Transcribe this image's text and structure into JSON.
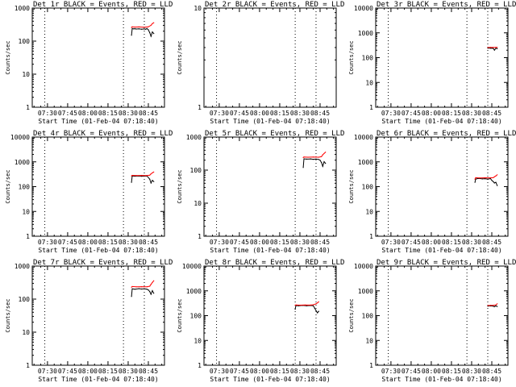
{
  "chart_data": {
    "type": "line",
    "layout": "3x3 grid",
    "y_axis": {
      "label": "Counts/sec",
      "scale": "log"
    },
    "x_axis": {
      "label": "Start Time (01-Feb-04 07:18:40)",
      "tick_labels": [
        "07:30",
        "07:45",
        "08:00",
        "08:15",
        "08:30",
        "08:45"
      ],
      "tick_minutes": [
        30,
        45,
        60,
        75,
        90,
        105
      ],
      "range_minutes": [
        18.67,
        117
      ],
      "dotted_lines_minutes": [
        28,
        86.5,
        102
      ]
    },
    "legend": "BLACK = Events, RED = LLD",
    "panels": [
      {
        "title": "Det 1r BLACK = Events, RED = LLD",
        "ylim": [
          1,
          1000
        ],
        "ytick_labels": [
          "1",
          "10",
          "100",
          "1000"
        ],
        "ytick_values": [
          1,
          10,
          100,
          1000
        ],
        "series": [
          {
            "name": "Events",
            "color": "#000000",
            "x": [
              92.5,
              93,
              94,
              95,
              96,
              98,
              100,
              102,
              103,
              104,
              105,
              106,
              107,
              108,
              109
            ],
            "y": [
              150,
              240,
              235,
              238,
              232,
              236,
              230,
              234,
              228,
              240,
              220,
              180,
              140,
              190,
              170
            ]
          },
          {
            "name": "LLD",
            "color": "#ff0000",
            "x": [
              92.5,
              93,
              95,
              98,
              101,
              103,
              105,
              107,
              108,
              109
            ],
            "y": [
              260,
              270,
              265,
              268,
              262,
              266,
              270,
              300,
              340,
              360
            ]
          }
        ]
      },
      {
        "title": "Det 2r BLACK = Events, RED = LLD",
        "ylim": [
          1,
          10
        ],
        "ytick_labels": [
          "1",
          "10"
        ],
        "ytick_values": [
          1,
          10
        ],
        "series": []
      },
      {
        "title": "Det 3r BLACK = Events, RED = LLD",
        "ylim": [
          1,
          10000
        ],
        "ytick_labels": [
          "1",
          "10",
          "100",
          "1000",
          "10000"
        ],
        "ytick_values": [
          1,
          10,
          100,
          1000,
          10000
        ],
        "series": [
          {
            "name": "Events",
            "color": "#000000",
            "x": [
              102,
              103,
              104,
              105,
              106,
              107,
              108,
              109
            ],
            "y": [
              240,
              245,
              238,
              242,
              236,
              200,
              240,
              230
            ]
          },
          {
            "name": "LLD",
            "color": "#ff0000",
            "x": [
              102,
              104,
              106,
              108,
              109
            ],
            "y": [
              255,
              258,
              256,
              260,
              258
            ]
          }
        ]
      },
      {
        "title": "Det 4r BLACK = Events, RED = LLD",
        "ylim": [
          1,
          10000
        ],
        "ytick_labels": [
          "1",
          "10",
          "100",
          "1000",
          "10000"
        ],
        "ytick_values": [
          1,
          10,
          100,
          1000,
          10000
        ],
        "series": [
          {
            "name": "Events",
            "color": "#000000",
            "x": [
              92.5,
              93,
              95,
              98,
              100,
              102,
              104,
              106,
              107,
              108,
              109
            ],
            "y": [
              150,
              270,
              265,
              268,
              262,
              266,
              270,
              200,
              140,
              180,
              160
            ]
          },
          {
            "name": "LLD",
            "color": "#ff0000",
            "x": [
              92.5,
              93,
              96,
              100,
              104,
              106,
              107,
              108,
              109
            ],
            "y": [
              270,
              285,
              280,
              284,
              282,
              290,
              330,
              360,
              390
            ]
          }
        ]
      },
      {
        "title": "Det 5r BLACK = Events, RED = LLD",
        "ylim": [
          1,
          1000
        ],
        "ytick_labels": [
          "1",
          "10",
          "100",
          "1000"
        ],
        "ytick_values": [
          1,
          10,
          100,
          1000
        ],
        "series": [
          {
            "name": "Events",
            "color": "#000000",
            "x": [
              92.5,
              93,
              95,
              98,
              100,
              102,
              104,
              105,
              106,
              107,
              108,
              109
            ],
            "y": [
              120,
              220,
              215,
              218,
              212,
              216,
              210,
              200,
              170,
              130,
              180,
              160
            ]
          },
          {
            "name": "LLD",
            "color": "#ff0000",
            "x": [
              92.5,
              93,
              96,
              100,
              104,
              106,
              107,
              108,
              109
            ],
            "y": [
              240,
              250,
              245,
              248,
              246,
              255,
              290,
              320,
              350
            ]
          }
        ]
      },
      {
        "title": "Det 6r BLACK = Events, RED = LLD",
        "ylim": [
          1,
          10000
        ],
        "ytick_labels": [
          "1",
          "10",
          "100",
          "1000",
          "10000"
        ],
        "ytick_values": [
          1,
          10,
          100,
          1000,
          10000
        ],
        "series": [
          {
            "name": "Events",
            "color": "#000000",
            "x": [
              92.5,
              93,
              95,
              98,
              100,
              102,
              104,
              105,
              106,
              107,
              108,
              109
            ],
            "y": [
              150,
              200,
              215,
              205,
              210,
              200,
              212,
              180,
              160,
              140,
              150,
              110
            ]
          },
          {
            "name": "LLD",
            "color": "#ff0000",
            "x": [
              92.5,
              93,
              96,
              100,
              104,
              106,
              107,
              108,
              109
            ],
            "y": [
              200,
              230,
              225,
              228,
              226,
              230,
              250,
              270,
              300
            ]
          }
        ]
      },
      {
        "title": "Det 7r BLACK = Events, RED = LLD",
        "ylim": [
          1,
          1000
        ],
        "ytick_labels": [
          "1",
          "10",
          "100",
          "1000"
        ],
        "ytick_values": [
          1,
          10,
          100,
          1000
        ],
        "series": [
          {
            "name": "Events",
            "color": "#000000",
            "x": [
              92.5,
              93,
              95,
              98,
              100,
              102,
              104,
              105,
              106,
              107,
              108,
              109
            ],
            "y": [
              120,
              205,
              200,
              208,
              202,
              206,
              200,
              190,
              170,
              140,
              180,
              150
            ]
          },
          {
            "name": "LLD",
            "color": "#ff0000",
            "x": [
              92.5,
              93,
              96,
              100,
              104,
              106,
              107,
              108,
              109
            ],
            "y": [
              230,
              240,
              235,
              238,
              236,
              245,
              280,
              320,
              360
            ]
          }
        ]
      },
      {
        "title": "Det 8r BLACK = Events, RED = LLD",
        "ylim": [
          1,
          10000
        ],
        "ytick_labels": [
          "1",
          "10",
          "100",
          "1000",
          "10000"
        ],
        "ytick_values": [
          1,
          10,
          100,
          1000,
          10000
        ],
        "series": [
          {
            "name": "Events",
            "color": "#000000",
            "x": [
              86.5,
              87,
              89,
              92,
              95,
              98,
              100,
              101,
              102,
              103,
              104
            ],
            "y": [
              180,
              255,
              250,
              258,
              252,
              256,
              250,
              200,
              160,
              130,
              150
            ]
          },
          {
            "name": "LLD",
            "color": "#ff0000",
            "x": [
              86.5,
              87,
              90,
              94,
              98,
              100,
              102,
              103,
              104
            ],
            "y": [
              260,
              270,
              265,
              268,
              266,
              275,
              300,
              330,
              360
            ]
          }
        ]
      },
      {
        "title": "Det 9r BLACK = Events, RED = LLD",
        "ylim": [
          1,
          10000
        ],
        "ytick_labels": [
          "1",
          "10",
          "100",
          "1000",
          "10000"
        ],
        "ytick_values": [
          1,
          10,
          100,
          1000,
          10000
        ],
        "series": [
          {
            "name": "Events",
            "color": "#000000",
            "x": [
              102,
              103,
              104,
              105,
              106,
              107,
              108,
              109
            ],
            "y": [
              240,
              250,
              245,
              248,
              240,
              230,
              250,
              235
            ]
          },
          {
            "name": "LLD",
            "color": "#ff0000",
            "x": [
              102,
              104,
              106,
              108,
              109
            ],
            "y": [
              255,
              260,
              258,
              270,
              300
            ]
          }
        ]
      }
    ]
  }
}
